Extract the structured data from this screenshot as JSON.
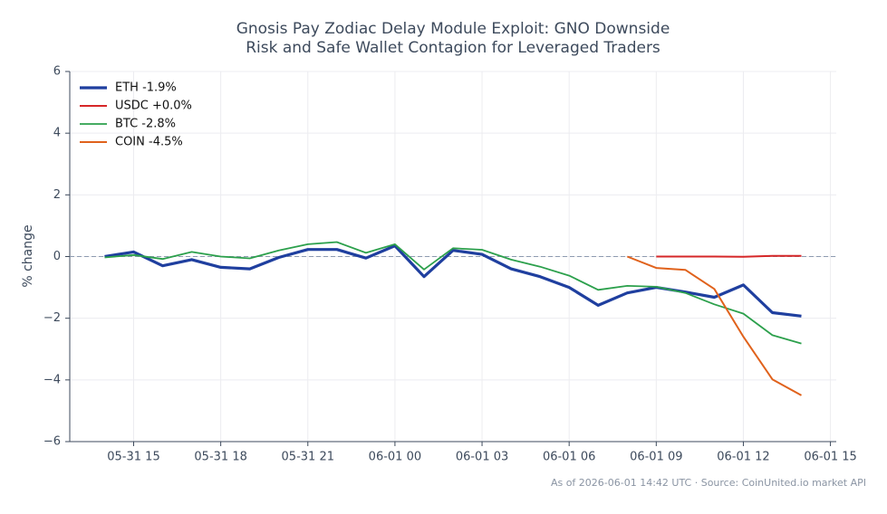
{
  "chart_data": {
    "type": "line",
    "title": [
      "Gnosis Pay Zodiac Delay Module Exploit: GNO Downside",
      "Risk and Safe Wallet Contagion for Leveraged Traders"
    ],
    "y_label": "% change",
    "footer": "As of 2026-06-01 14:42 UTC · Source: CoinUnited.io market API",
    "x": [
      "05-31 14",
      "05-31 15",
      "05-31 16",
      "05-31 17",
      "05-31 18",
      "05-31 19",
      "05-31 20",
      "05-31 21",
      "05-31 22",
      "05-31 23",
      "06-01 00",
      "06-01 01",
      "06-01 02",
      "06-01 03",
      "06-01 04",
      "06-01 05",
      "06-01 06",
      "06-01 07",
      "06-01 08",
      "06-01 09",
      "06-01 10",
      "06-01 11",
      "06-01 12",
      "06-01 13",
      "06-01 14"
    ],
    "series": [
      {
        "name": "ETH -1.9%",
        "color": "#1f3f9f",
        "width": 3.2,
        "values": [
          0.0,
          0.15,
          -0.3,
          -0.1,
          -0.35,
          -0.4,
          -0.03,
          0.23,
          0.23,
          -0.05,
          0.35,
          -0.65,
          0.2,
          0.07,
          -0.4,
          -0.65,
          -1.0,
          -1.58,
          -1.18,
          -1.0,
          -1.15,
          -1.32,
          -0.92,
          -1.82,
          -1.93
        ]
      },
      {
        "name": "USDC +0.0%",
        "color": "#d62728",
        "width": 2,
        "values": [
          null,
          null,
          null,
          null,
          null,
          null,
          null,
          null,
          null,
          null,
          null,
          null,
          null,
          null,
          null,
          null,
          null,
          null,
          null,
          0.0,
          0.0,
          0.0,
          -0.01,
          0.02,
          0.02
        ]
      },
      {
        "name": "BTC -2.8%",
        "color": "#2ca04c",
        "width": 1.8,
        "values": [
          -0.03,
          0.05,
          -0.08,
          0.15,
          0.0,
          -0.06,
          0.2,
          0.4,
          0.47,
          0.12,
          0.4,
          -0.42,
          0.27,
          0.22,
          -0.1,
          -0.33,
          -0.62,
          -1.08,
          -0.95,
          -0.98,
          -1.18,
          -1.55,
          -1.85,
          -2.55,
          -2.82
        ]
      },
      {
        "name": "COIN -4.5%",
        "color": "#e0621c",
        "width": 2,
        "values": [
          null,
          null,
          null,
          null,
          null,
          null,
          null,
          null,
          null,
          null,
          null,
          null,
          null,
          null,
          null,
          null,
          null,
          null,
          0.0,
          -0.37,
          -0.43,
          -1.05,
          -2.6,
          -3.98,
          -4.5
        ]
      }
    ],
    "xlim": [
      "05-31 12:48",
      "06-01 15:12"
    ],
    "xticks": [
      "05-31 15",
      "05-31 18",
      "05-31 21",
      "06-01 00",
      "06-01 03",
      "06-01 06",
      "06-01 09",
      "06-01 12",
      "06-01 15"
    ],
    "ylim": [
      -6,
      6
    ],
    "yticks": [
      {
        "value": -6,
        "label": "−6"
      },
      {
        "value": -4,
        "label": "−4"
      },
      {
        "value": -2,
        "label": "−2"
      },
      0,
      2,
      4,
      6
    ],
    "hline": 0,
    "grid": true,
    "legend": "upper-left"
  }
}
